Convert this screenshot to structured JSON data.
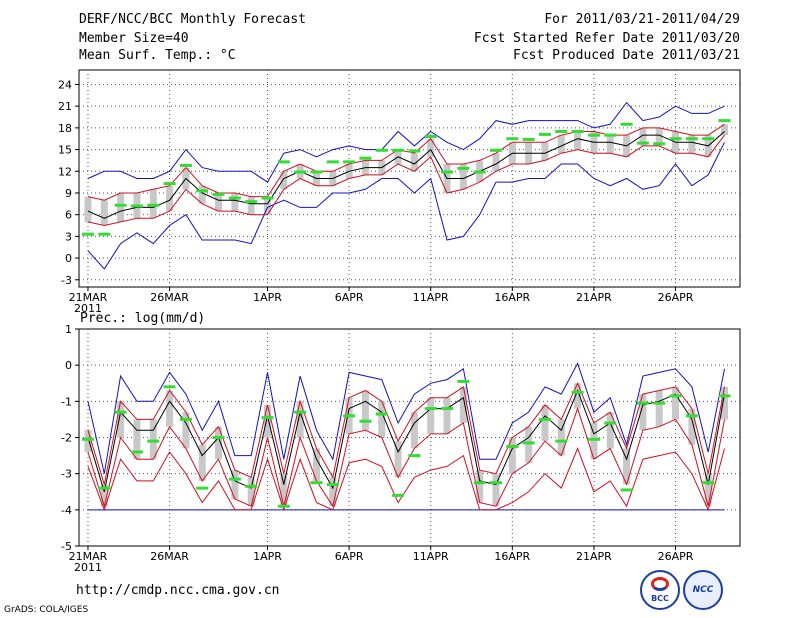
{
  "header": {
    "title": "DERF/NCC/BCC Monthly Forecast",
    "member_size": "Member Size=40",
    "variable": "Mean Surf. Temp.: °C",
    "period": "For 2011/03/21-2011/04/29",
    "started": "Fcst Started Refer Date 2011/03/20",
    "produced": "Fcst Produced Date 2011/03/21"
  },
  "footer": {
    "url": "http://cmdp.ncc.cma.gov.cn",
    "grads": "GrADS: COLA/IGES",
    "logo_bcc": "BCC",
    "logo_ncc": "NCC"
  },
  "colors": {
    "grid": "#555555",
    "box": "#c8c8c8",
    "mean": "#000000",
    "inner": "#d01020",
    "outer": "#1010c8",
    "mark": "#33dd33",
    "zero_line": "#1010c8"
  },
  "chart_data": [
    {
      "type": "line",
      "title": "Mean Surf. Temp.: °C",
      "x_tick_labels": [
        "21MAR",
        "26MAR",
        "1APR",
        "6APR",
        "11APR",
        "16APR",
        "21APR",
        "26APR"
      ],
      "x_tick_days": [
        0,
        5,
        11,
        16,
        21,
        26,
        31,
        36
      ],
      "year_label": "2011",
      "days": 40,
      "ylim": [
        -4,
        26
      ],
      "yticks": [
        -3,
        0,
        3,
        6,
        9,
        12,
        15,
        18,
        21,
        24
      ],
      "series": [
        {
          "name": "ensemble-mean",
          "values": [
            6.5,
            5.5,
            6.5,
            7,
            7,
            8,
            11,
            9,
            8,
            8,
            7.5,
            7.5,
            11,
            12,
            11,
            11,
            12,
            12.5,
            12.5,
            14,
            13,
            15,
            11,
            11,
            12,
            13,
            14.5,
            14.5,
            14.5,
            15.5,
            16.5,
            16,
            16,
            15.5,
            17,
            17,
            16,
            16,
            15.5,
            17.5
          ]
        },
        {
          "name": "upper-inner",
          "values": [
            8.5,
            8,
            9,
            9,
            9.5,
            10,
            12.5,
            10,
            9,
            9,
            8.5,
            8.5,
            12,
            13,
            12,
            12,
            13,
            13.5,
            13.5,
            15,
            14.5,
            16.5,
            13,
            13,
            13.5,
            14.5,
            16,
            16,
            16,
            17,
            17.5,
            17.5,
            17,
            17,
            18,
            18,
            17.5,
            17,
            17,
            18.5
          ]
        },
        {
          "name": "lower-inner",
          "values": [
            5,
            4.5,
            5,
            5.5,
            5.5,
            6.5,
            9.5,
            7.5,
            6.5,
            6.5,
            6,
            6,
            9.5,
            11,
            10,
            10,
            11,
            11.5,
            11.5,
            13,
            12,
            14,
            9,
            9.5,
            10.5,
            12,
            13,
            13,
            13.5,
            14.5,
            15,
            14.5,
            14.5,
            14,
            15.5,
            15.5,
            14.5,
            14.5,
            14,
            17
          ]
        },
        {
          "name": "upper-outer",
          "values": [
            11,
            12,
            12,
            11,
            11,
            12,
            15,
            12.5,
            12,
            12,
            12,
            10.5,
            14.5,
            15,
            14,
            15,
            15.5,
            15,
            15,
            17.5,
            15.5,
            17.5,
            16,
            15,
            16.5,
            19,
            18.5,
            19,
            19,
            19,
            19,
            18,
            18.5,
            21.5,
            19,
            19.5,
            21,
            20,
            20,
            21
          ]
        },
        {
          "name": "lower-outer",
          "values": [
            1,
            -1.5,
            2,
            3.5,
            2,
            4.5,
            6,
            2.5,
            2.5,
            2.5,
            2,
            7,
            8,
            7,
            7,
            9,
            9,
            9.5,
            11,
            11,
            9,
            11,
            2.5,
            3,
            6,
            10.5,
            10.5,
            11,
            11,
            13,
            13,
            11,
            10,
            11,
            9.5,
            10,
            13,
            10,
            11.5,
            16
          ]
        },
        {
          "name": "observed-marks",
          "values": [
            3.3,
            3.3,
            7.3,
            7.2,
            7.3,
            10.3,
            12.8,
            9.3,
            8.8,
            8.3,
            7.8,
            8.3,
            13.3,
            11.9,
            11.9,
            13.3,
            13.3,
            13.8,
            14.9,
            14.9,
            14.8,
            16.8,
            11.9,
            12.4,
            11.9,
            14.9,
            16.5,
            16.4,
            17.1,
            17.5,
            17.5,
            17,
            17,
            18.5,
            15.9,
            15.8,
            16.5,
            16.5,
            16.5,
            19
          ]
        }
      ]
    },
    {
      "type": "line",
      "title": "Prec.: log(mm/d)",
      "x_tick_labels": [
        "21MAR",
        "26MAR",
        "1APR",
        "6APR",
        "11APR",
        "16APR",
        "21APR",
        "26APR"
      ],
      "x_tick_days": [
        0,
        5,
        11,
        16,
        21,
        26,
        31,
        36
      ],
      "year_label": "2011",
      "days": 40,
      "ylim": [
        -5,
        1
      ],
      "yticks": [
        -5,
        -4,
        -3,
        -2,
        -1,
        0,
        1
      ],
      "baseline": -4,
      "series": [
        {
          "name": "ensemble-mean",
          "values": [
            -2,
            -3.5,
            -1.3,
            -1.8,
            -1.8,
            -1,
            -1.6,
            -2.5,
            -2,
            -3.2,
            -3.4,
            -1.4,
            -3.3,
            -1.3,
            -2.6,
            -3.4,
            -1.2,
            -1,
            -1.3,
            -2.4,
            -1.6,
            -1.2,
            -1.2,
            -0.9,
            -3.2,
            -3.3,
            -2.3,
            -2,
            -1.4,
            -1.8,
            -0.7,
            -1.9,
            -1.6,
            -2.6,
            -1.1,
            -1,
            -0.8,
            -1.5,
            -3.3,
            -0.8
          ]
        },
        {
          "name": "upper-inner",
          "values": [
            -1.8,
            -3.3,
            -1,
            -1.5,
            -1.5,
            -0.7,
            -1.3,
            -2.2,
            -1.7,
            -2.9,
            -3.1,
            -1.1,
            -3,
            -1,
            -2.3,
            -3.1,
            -0.9,
            -0.7,
            -1,
            -2.1,
            -1.3,
            -0.9,
            -0.9,
            -0.6,
            -2.9,
            -3,
            -2,
            -1.7,
            -1.1,
            -1.5,
            -0.5,
            -1.6,
            -1.3,
            -2.3,
            -0.8,
            -0.7,
            -0.6,
            -1.2,
            -3,
            -0.6
          ]
        },
        {
          "name": "lower-inner",
          "values": [
            -2.4,
            -3.9,
            -2,
            -2.6,
            -2.6,
            -1.7,
            -2.3,
            -3.2,
            -2.6,
            -3.7,
            -3.9,
            -2,
            -3.9,
            -2,
            -3.2,
            -3.9,
            -1.9,
            -1.8,
            -2,
            -3.1,
            -2.3,
            -1.9,
            -1.9,
            -1.6,
            -3.8,
            -3.9,
            -3,
            -2.7,
            -2.1,
            -2.5,
            -1.2,
            -2.6,
            -2.3,
            -3.3,
            -1.8,
            -1.7,
            -1.5,
            -2.2,
            -3.9,
            -1.5
          ]
        },
        {
          "name": "lower-red",
          "values": [
            -2.8,
            -4,
            -2.6,
            -3.2,
            -3.2,
            -2.4,
            -3,
            -3.8,
            -3.2,
            -4,
            -4,
            -2.6,
            -4,
            -2.6,
            -3.8,
            -4,
            -2.7,
            -2.6,
            -2.8,
            -3.8,
            -3.1,
            -2.9,
            -2.8,
            -2.5,
            -4,
            -4,
            -3.8,
            -3.5,
            -3,
            -3.4,
            -2.3,
            -3.5,
            -3.2,
            -3.9,
            -2.6,
            -2.5,
            -2.4,
            -3,
            -4,
            -2.3
          ]
        },
        {
          "name": "upper-outer",
          "values": [
            -1,
            -3,
            -0.3,
            -1,
            -1,
            -0.2,
            -0.8,
            -1.8,
            -1,
            -2.5,
            -2.5,
            -0.2,
            -2.6,
            -0.3,
            -1.8,
            -2.6,
            -0.2,
            -0.3,
            -0.4,
            -1.6,
            -0.8,
            -0.5,
            -0.4,
            -0.1,
            -2.6,
            -2.6,
            -1.6,
            -1.3,
            -0.6,
            -0.8,
            0.05,
            -1.3,
            -0.9,
            -2.2,
            -0.3,
            -0.2,
            -0.1,
            -0.6,
            -2.4,
            -0.1
          ]
        },
        {
          "name": "observed-marks",
          "values": [
            -2.05,
            -3.4,
            -1.3,
            -2.4,
            -2.1,
            -0.6,
            -1.5,
            -3.4,
            -2,
            -3.15,
            -3.35,
            -1.45,
            -3.9,
            -1.3,
            -3.25,
            -3.3,
            -1.4,
            -1.55,
            -1.35,
            -3.6,
            -2.5,
            -1.2,
            -1.2,
            -0.45,
            -3.25,
            -3.25,
            -2.25,
            -2.15,
            -1.5,
            -2.1,
            -0.75,
            -2.05,
            -1.6,
            -3.45,
            -1.05,
            -1.05,
            -0.85,
            -1.4,
            -3.25,
            -0.85
          ]
        }
      ]
    }
  ]
}
